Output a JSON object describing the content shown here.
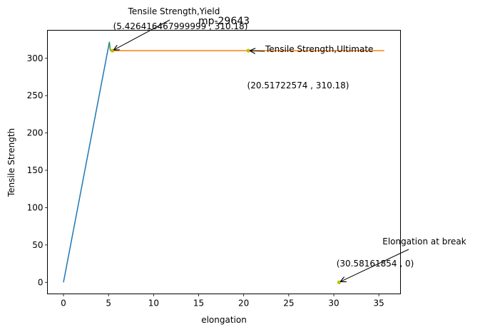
{
  "chart_data": {
    "type": "line",
    "title": "mp-29643",
    "xlabel": "elongation",
    "ylabel": "Tensile Strength",
    "xlim": [
      -1.78,
      37.4
    ],
    "ylim": [
      -15.5,
      337.5
    ],
    "xticks": [
      "0",
      "5",
      "10",
      "15",
      "20",
      "25",
      "30",
      "35"
    ],
    "yticks": [
      "0",
      "50",
      "100",
      "150",
      "200",
      "250",
      "300"
    ],
    "grid": false,
    "series": [
      {
        "color": "#1f77b4",
        "x": [
          0,
          5.1
        ],
        "y": [
          0,
          322
        ]
      },
      {
        "color": "#2ca02c",
        "x": [
          5.1,
          5.2
        ],
        "y": [
          322,
          310.18
        ]
      },
      {
        "color": "#ff7f0e",
        "x": [
          5.2,
          35.6
        ],
        "y": [
          310.18,
          310.18
        ]
      }
    ],
    "points": [
      {
        "x": 5.426416467999999,
        "y": 310.18,
        "color": "#bfbf00"
      },
      {
        "x": 20.51722574,
        "y": 310.18,
        "color": "#bfbf00"
      },
      {
        "x": 30.58161854,
        "y": 0,
        "color": "#bfbf00"
      }
    ],
    "annotations": [
      {
        "label": "Tensile Strength,Yield",
        "coords": "(5.426416467999999 , 310.18)",
        "x": 5.426416467999999,
        "y": 310.18
      },
      {
        "label": "Tensile Strength,Ultimate",
        "coords": "(20.51722574 , 310.18)",
        "x": 20.51722574,
        "y": 310.18
      },
      {
        "label": "Elongation at break",
        "coords": "(30.58161854 , 0)",
        "x": 30.58161854,
        "y": 0
      }
    ]
  }
}
